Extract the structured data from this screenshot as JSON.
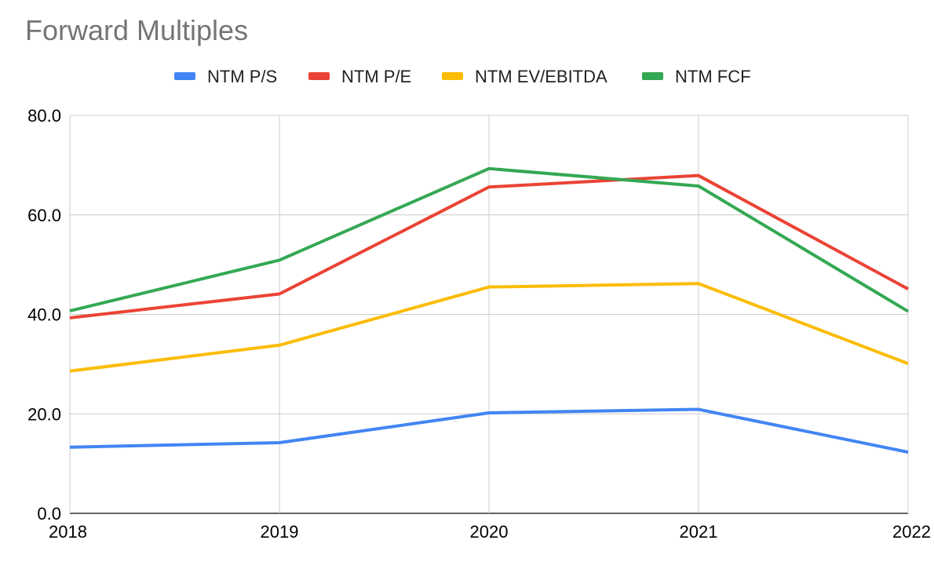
{
  "chart_data": {
    "type": "line",
    "title": "Forward Multiples",
    "xlabel": "",
    "ylabel": "",
    "categories": [
      "2018",
      "2019",
      "2020",
      "2021",
      "2022"
    ],
    "ylim": [
      0,
      80
    ],
    "yticks": [
      "0.0",
      "20.0",
      "40.0",
      "60.0",
      "80.0"
    ],
    "yticks_values": [
      0,
      20,
      40,
      60,
      80
    ],
    "grid": true,
    "legend_position": "top",
    "series": [
      {
        "name": "NTM P/S",
        "color": "#4285f4",
        "values": [
          13.3,
          14.2,
          20.2,
          20.9,
          12.3
        ]
      },
      {
        "name": "NTM P/E",
        "color": "#ea4335",
        "values": [
          39.3,
          44.1,
          65.6,
          67.9,
          45.1
        ]
      },
      {
        "name": "NTM EV/EBITDA",
        "color": "#fbbc04",
        "values": [
          28.6,
          33.8,
          45.5,
          46.2,
          30.1
        ]
      },
      {
        "name": "NTM FCF",
        "color": "#34a853",
        "values": [
          40.7,
          50.9,
          69.3,
          65.8,
          40.6
        ]
      }
    ]
  }
}
